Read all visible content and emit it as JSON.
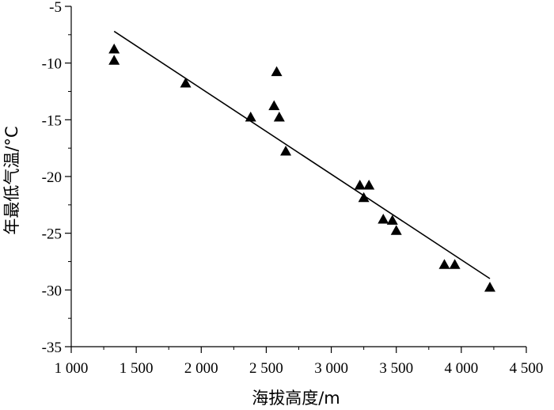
{
  "chart_data": {
    "type": "scatter",
    "title": "",
    "xlabel": "海拔高度/m",
    "ylabel": "年最低气温/°C",
    "xlim": [
      1000,
      4500
    ],
    "ylim": [
      -35,
      -5
    ],
    "x_ticks": [
      1000,
      1500,
      2000,
      2500,
      3000,
      3500,
      4000,
      4500
    ],
    "x_tick_labels": [
      "1 000",
      "1 500",
      "2 000",
      "2 500",
      "3 000",
      "3 500",
      "4 000",
      "4 500"
    ],
    "y_ticks": [
      -35,
      -30,
      -25,
      -20,
      -15,
      -10,
      -5
    ],
    "y_tick_labels": [
      "-35",
      "-30",
      "-25",
      "-20",
      "-15",
      "-10",
      "-5"
    ],
    "grid": false,
    "legend": "none",
    "marker": "triangle",
    "color": "#000000",
    "series": [
      {
        "points": [
          [
            1330,
            -8.8
          ],
          [
            1330,
            -9.8
          ],
          [
            1880,
            -11.8
          ],
          [
            2380,
            -14.8
          ],
          [
            2560,
            -13.8
          ],
          [
            2580,
            -10.8
          ],
          [
            2600,
            -14.8
          ],
          [
            2650,
            -17.8
          ],
          [
            3220,
            -20.8
          ],
          [
            3250,
            -21.9
          ],
          [
            3290,
            -20.8
          ],
          [
            3400,
            -23.8
          ],
          [
            3470,
            -23.9
          ],
          [
            3500,
            -24.8
          ],
          [
            3870,
            -27.8
          ],
          [
            3950,
            -27.8
          ],
          [
            4220,
            -29.8
          ]
        ]
      }
    ],
    "trendline": {
      "x": [
        1330,
        4220
      ],
      "y": [
        -7.2,
        -29.0
      ]
    }
  }
}
